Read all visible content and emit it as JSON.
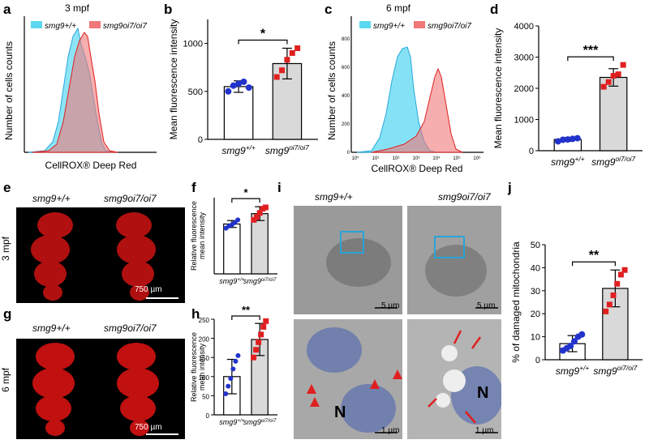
{
  "panel_letters": {
    "a": "a",
    "b": "b",
    "c": "c",
    "d": "d",
    "e": "e",
    "f": "f",
    "g": "g",
    "h": "h",
    "i": "i",
    "j": "j"
  },
  "colors": {
    "wt": "#2233cc",
    "mut": "#e02020",
    "hist_wt": "#5bd8f0",
    "hist_mut": "#f07878",
    "bar_mut": "#d9d9d9",
    "box": "#29a3d9",
    "brain": "#c01010"
  },
  "histograms": [
    {
      "title": "3 mpf",
      "ylabel": "Number of cells counts",
      "xlabel": "CellROX® Deep Red",
      "legend": [
        "smg9+/+",
        "smg9oi7/oi7"
      ]
    },
    {
      "title": "6 mpf",
      "ylabel": "Number of cells counts",
      "xlabel": "CellROX® Deep Red",
      "legend": [
        "smg9+/+",
        "smg9oi7/oi7"
      ],
      "yticks": [
        "0",
        "200",
        "400",
        "600",
        "800"
      ],
      "xticks": [
        "10⁰",
        "10¹",
        "10²",
        "10³",
        "10⁴",
        "10⁵",
        "10⁶"
      ]
    }
  ],
  "images": {
    "e": {
      "label_wt": "smg9+/+",
      "label_mut": "smg9oi7/oi7",
      "side": "3 mpf",
      "scale": "750 µm"
    },
    "g": {
      "label_wt": "smg9+/+",
      "label_mut": "smg9oi7/oi7",
      "side": "6 mpf",
      "scale": "750 µm"
    },
    "i": {
      "label_wt": "smg9+/+",
      "label_mut": "smg9oi7/oi7",
      "scale_top": "5 µm",
      "scale_bottom": "1 µm",
      "nucleus": "N"
    }
  },
  "chart_data": [
    {
      "panel": "b",
      "type": "bar",
      "categories": [
        "smg9+/+",
        "smg9oi7/oi7"
      ],
      "values": [
        550,
        790
      ],
      "errors": [
        60,
        160
      ],
      "points": [
        [
          500,
          560,
          580,
          600,
          540
        ],
        [
          650,
          720,
          830,
          900,
          950
        ]
      ],
      "ylabel": "Mean fluorescence intensity",
      "ylim": [
        0,
        1250
      ],
      "yticks": [
        0,
        500,
        1000
      ],
      "significance": "*"
    },
    {
      "panel": "d",
      "type": "bar",
      "categories": [
        "smg9+/+",
        "smg9oi7/oi7"
      ],
      "values": [
        360,
        2350
      ],
      "errors": [
        60,
        280
      ],
      "points": [
        [
          300,
          350,
          360,
          380,
          400
        ],
        [
          2050,
          2200,
          2400,
          2450,
          2750
        ]
      ],
      "ylabel": "Mean fluorescence intensity",
      "ylim": [
        0,
        4000
      ],
      "yticks": [
        0,
        1000,
        2000,
        3000,
        4000
      ],
      "significance": "***"
    },
    {
      "panel": "f",
      "type": "bar",
      "categories": [
        "smg9+/+",
        "smg9oi7/oi7"
      ],
      "values": [
        72,
        87
      ],
      "errors": [
        5,
        10
      ],
      "points": [
        [
          66,
          69,
          71,
          74,
          78
        ],
        [
          78,
          82,
          88,
          94,
          96
        ]
      ],
      "ylabel": "Relative fluorescence mean intensity",
      "ylim": [
        0,
        110
      ],
      "yticks": [],
      "significance": "*"
    },
    {
      "panel": "h",
      "type": "bar",
      "categories": [
        "smg9+/+",
        "smg9oi7/oi7"
      ],
      "values": [
        100,
        197
      ],
      "errors": [
        45,
        42
      ],
      "points": [
        [
          55,
          75,
          95,
          120,
          140,
          155
        ],
        [
          150,
          170,
          190,
          210,
          230,
          245
        ]
      ],
      "ylabel": "Relative fluorescence mean intensity",
      "ylim": [
        0,
        250
      ],
      "yticks": [
        0,
        50,
        100,
        150,
        200,
        250
      ],
      "significance": "**"
    },
    {
      "panel": "j",
      "type": "bar",
      "categories": [
        "smg9+/+",
        "smg9oi7/oi7"
      ],
      "values": [
        7,
        31
      ],
      "errors": [
        3.5,
        8
      ],
      "points": [
        [
          4,
          5,
          6,
          8,
          10,
          11
        ],
        [
          21,
          24,
          28,
          33,
          37,
          39
        ]
      ],
      "ylabel": "% of damaged mitochondria",
      "ylim": [
        0,
        50
      ],
      "yticks": [
        0,
        10,
        20,
        30,
        40,
        50
      ],
      "significance": "**"
    }
  ]
}
